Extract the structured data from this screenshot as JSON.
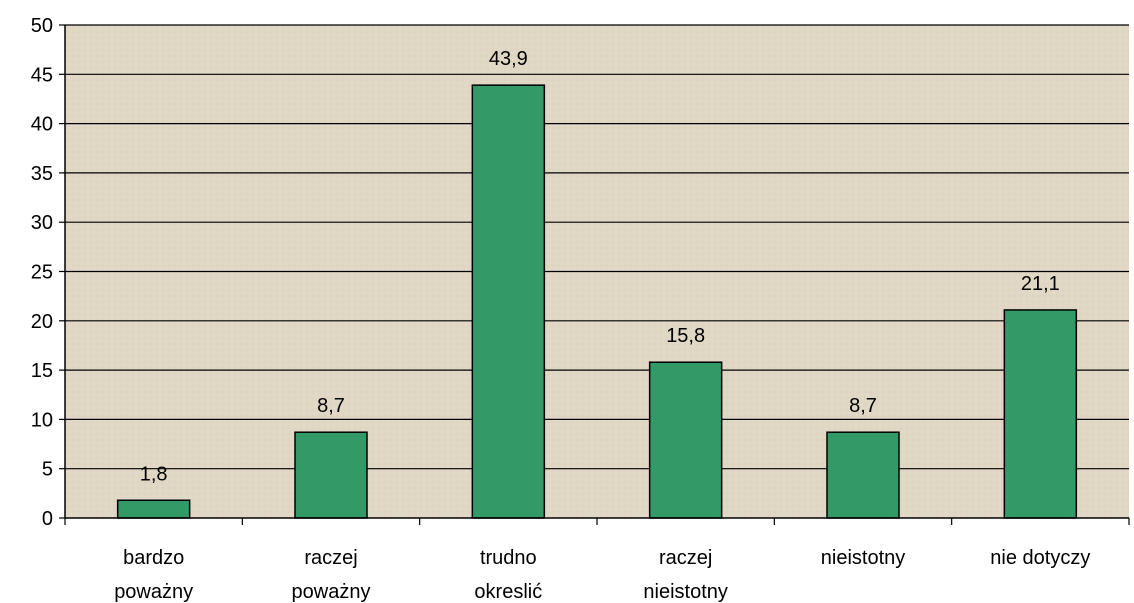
{
  "chart_data": {
    "type": "bar",
    "categories": [
      [
        "bardzo",
        "poważny"
      ],
      [
        "raczej",
        "poważny"
      ],
      [
        "trudno",
        "okreslić"
      ],
      [
        "raczej",
        "nieistotny"
      ],
      [
        "nieistotny"
      ],
      [
        "nie dotyczy"
      ]
    ],
    "values": [
      1.8,
      8.7,
      43.9,
      15.8,
      8.7,
      21.1
    ],
    "value_labels": [
      "1,8",
      "8,7",
      "43,9",
      "15,8",
      "8,7",
      "21,1"
    ],
    "ylim": [
      0,
      50
    ],
    "yticks": [
      "0",
      "5",
      "10",
      "15",
      "20",
      "25",
      "30",
      "35",
      "40",
      "45",
      "50"
    ],
    "title": "",
    "xlabel": "",
    "ylabel": "",
    "grid": true,
    "legend": "none",
    "colors": {
      "bar_fill": "#339966",
      "bar_stroke": "#000000",
      "plot_background": "#e0d7c5",
      "gridline": "#000000"
    }
  }
}
